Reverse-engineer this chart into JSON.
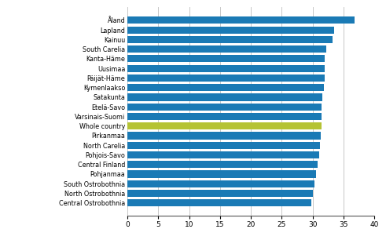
{
  "categories": [
    "Central Ostrobothnia",
    "North Ostrobothnia",
    "South Ostrobothnia",
    "Pohjanmaa",
    "Central Finland",
    "Pohjois-Savo",
    "North Carelia",
    "Pirkanmaa",
    "Whole country",
    "Varsinais-Suomi",
    "Etelä-Savo",
    "Satakunta",
    "Kymenlaakso",
    "Päijät-Häme",
    "Uusimaa",
    "Kanta-Häme",
    "South Carelia",
    "Kainuu",
    "Lapland",
    "Åland"
  ],
  "values": [
    29.8,
    30.0,
    30.3,
    30.5,
    30.8,
    31.0,
    31.2,
    31.3,
    31.4,
    31.4,
    31.5,
    31.6,
    31.8,
    31.9,
    32.0,
    32.0,
    32.2,
    33.2,
    33.5,
    36.8
  ],
  "bar_colors": [
    "#1a7ab5",
    "#1a7ab5",
    "#1a7ab5",
    "#1a7ab5",
    "#1a7ab5",
    "#1a7ab5",
    "#1a7ab5",
    "#1a7ab5",
    "#b5c334",
    "#1a7ab5",
    "#1a7ab5",
    "#1a7ab5",
    "#1a7ab5",
    "#1a7ab5",
    "#1a7ab5",
    "#1a7ab5",
    "#1a7ab5",
    "#1a7ab5",
    "#1a7ab5",
    "#1a7ab5"
  ],
  "xlim": [
    0,
    40
  ],
  "xticks": [
    0,
    5,
    10,
    15,
    20,
    25,
    30,
    35,
    40
  ],
  "grid_color": "#c8c8c8",
  "background_color": "#ffffff",
  "bar_height": 0.75
}
